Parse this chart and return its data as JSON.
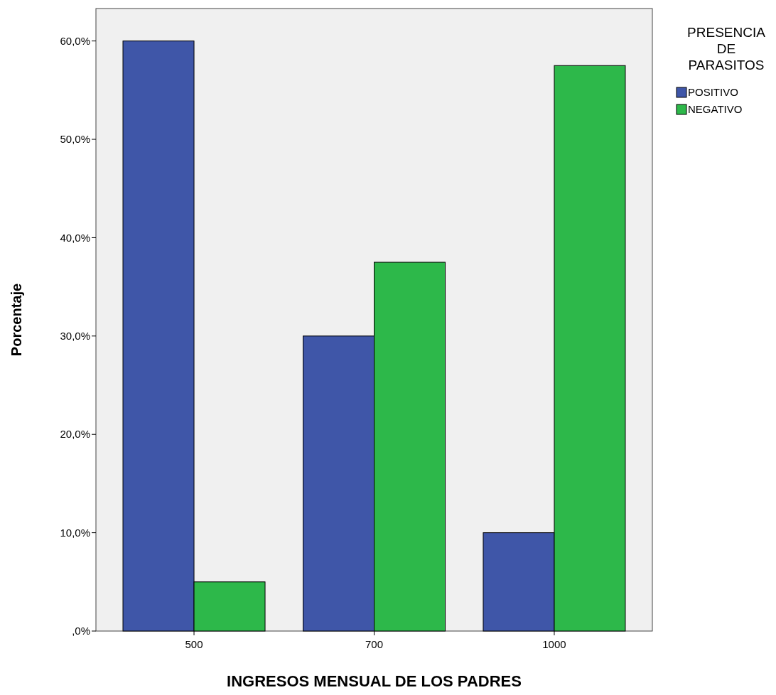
{
  "chart_data": {
    "type": "bar",
    "xlabel": "INGRESOS MENSUAL DE LOS PADRES",
    "ylabel": "Porcentaje",
    "legend_title": "PRESENCIA DE PARASITOS",
    "categories": [
      "500",
      "700",
      "1000"
    ],
    "series": [
      {
        "name": "POSITIVO",
        "color": "#3f56a8",
        "values": [
          60,
          30,
          10
        ]
      },
      {
        "name": "NEGATIVO",
        "color": "#2db84a",
        "values": [
          5,
          37.5,
          57.5
        ]
      }
    ],
    "ylim": [
      0,
      63.3
    ],
    "yticks": [
      {
        "value": 0,
        "label": ",0%"
      },
      {
        "value": 10,
        "label": "10,0%"
      },
      {
        "value": 20,
        "label": "20,0%"
      },
      {
        "value": 30,
        "label": "30,0%"
      },
      {
        "value": 40,
        "label": "40,0%"
      },
      {
        "value": 50,
        "label": "50,0%"
      },
      {
        "value": 60,
        "label": "60,0%"
      }
    ],
    "grid": false,
    "legend": "top right"
  }
}
